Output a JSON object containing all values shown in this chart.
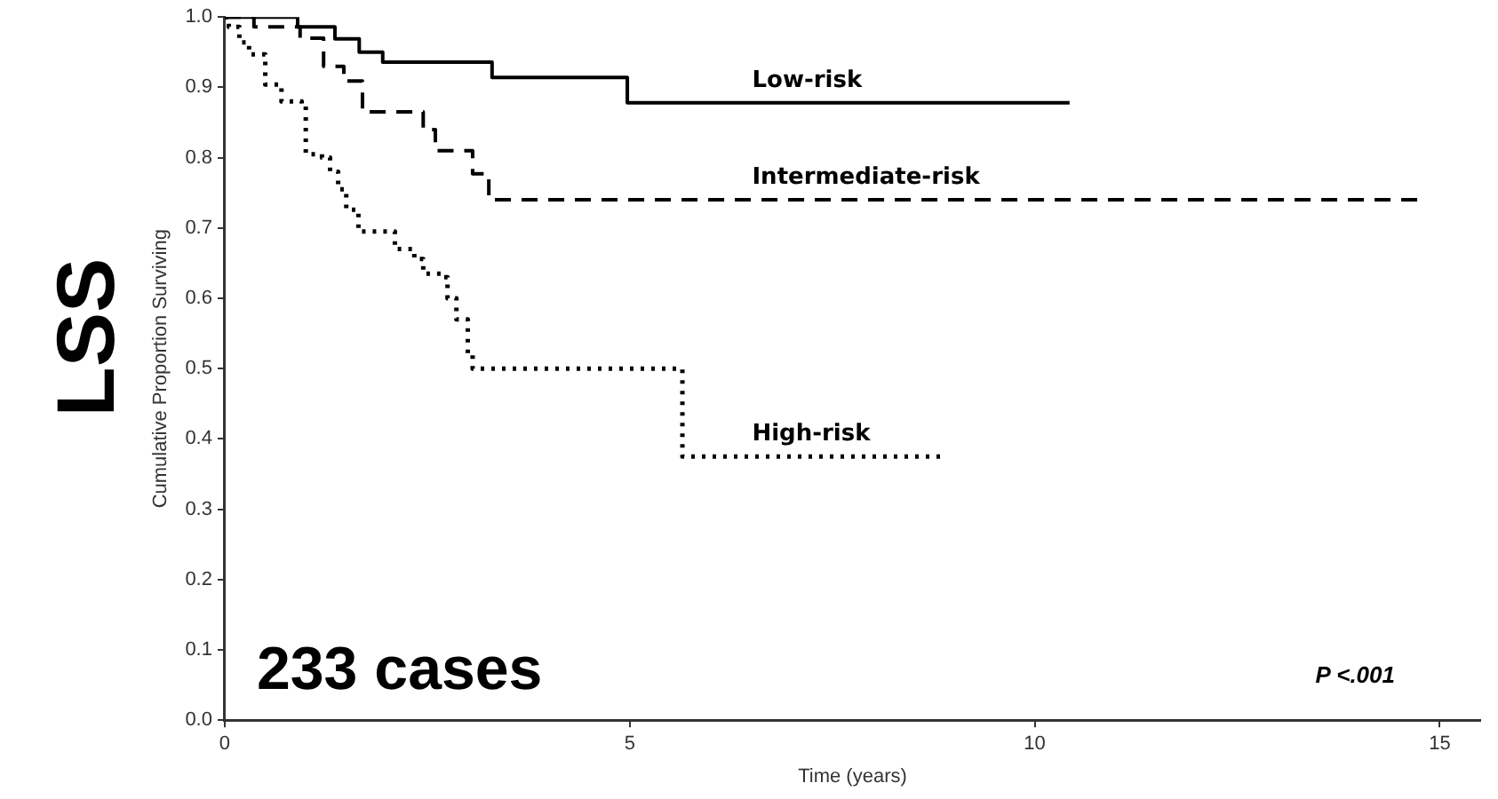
{
  "chart_data": {
    "type": "step",
    "title": "LSS",
    "xlabel": "Time (years)",
    "ylabel": "Cumulative Proportion Surviving",
    "series": [
      {
        "name": "Low-risk",
        "color": "#000000",
        "line_style": "solid",
        "x": [
          0,
          0.9,
          1.36,
          1.66,
          1.95,
          3.3,
          4.97,
          10.43
        ],
        "values": [
          1,
          0.986,
          0.969,
          0.95,
          0.936,
          0.914,
          0.878,
          0.878
        ]
      },
      {
        "name": "Intermediate-risk",
        "color": "#000000",
        "line_style": "dashed",
        "x": [
          0,
          0.36,
          0.93,
          1.22,
          1.47,
          1.7,
          2.45,
          2.6,
          3.06,
          3.26,
          14.76
        ],
        "values": [
          1,
          0.986,
          0.97,
          0.93,
          0.909,
          0.865,
          0.84,
          0.81,
          0.777,
          0.74,
          0.74
        ]
      },
      {
        "name": "High-risk",
        "color": "#000000",
        "line_style": "dotted",
        "x": [
          0,
          0.05,
          0.18,
          0.3,
          0.5,
          0.7,
          0.95,
          1.0,
          1.2,
          1.3,
          1.4,
          1.5,
          1.65,
          2.04,
          2.1,
          2.34,
          2.45,
          2.68,
          2.75,
          2.86,
          3.0,
          3.06,
          5.65,
          8.87
        ],
        "values": [
          1,
          0.986,
          0.964,
          0.947,
          0.904,
          0.88,
          0.877,
          0.805,
          0.8,
          0.78,
          0.755,
          0.726,
          0.695,
          0.695,
          0.67,
          0.656,
          0.635,
          0.63,
          0.6,
          0.57,
          0.52,
          0.5,
          0.375,
          0.375
        ]
      }
    ],
    "xlim": [
      0,
      15.5
    ],
    "xticks": [
      0,
      5,
      10,
      15
    ],
    "ylim": [
      0,
      1
    ],
    "yticks": [
      {
        "value": 0,
        "label": "0.0"
      },
      {
        "value": 0.1,
        "label": "0.1"
      },
      {
        "value": 0.2,
        "label": "0.2"
      },
      {
        "value": 0.3,
        "label": "0.3"
      },
      {
        "value": 0.4,
        "label": "0.4"
      },
      {
        "value": 0.5,
        "label": "0.5"
      },
      {
        "value": 0.6,
        "label": "0.6"
      },
      {
        "value": 0.7,
        "label": "0.7"
      },
      {
        "value": 0.8,
        "label": "0.8"
      },
      {
        "value": 0.9,
        "label": "0.9"
      },
      {
        "value": 1,
        "label": "1.0"
      }
    ],
    "grid": false,
    "legend": false,
    "marker": "none",
    "annotations": [
      "233 cases",
      "P <.001"
    ]
  }
}
